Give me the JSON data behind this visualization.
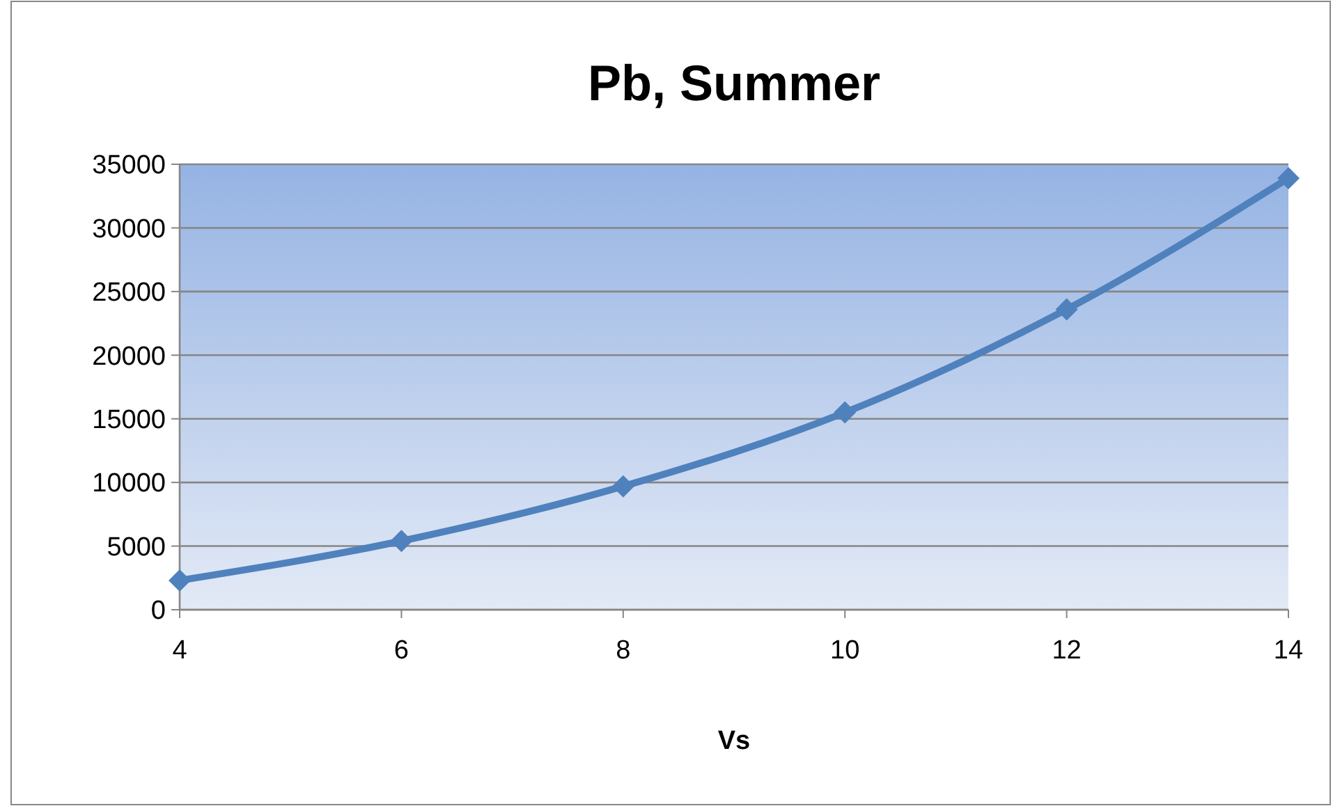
{
  "chart_data": {
    "type": "line",
    "title": "Pb, Summer",
    "xlabel": "Vs",
    "x": [
      4,
      6,
      8,
      10,
      12,
      14
    ],
    "series": [
      {
        "color": "#4f81bd",
        "values": [
          2300,
          5400,
          9700,
          15500,
          23600,
          33900
        ]
      }
    ],
    "xlim": [
      4,
      14
    ],
    "xticks": [
      4,
      6,
      8,
      10,
      12,
      14
    ],
    "ylim": [
      0,
      35000
    ],
    "yticks": [
      0,
      5000,
      10000,
      15000,
      20000,
      25000,
      30000,
      35000
    ],
    "grid": "y",
    "marker": "diamond",
    "line_style": "solid"
  }
}
